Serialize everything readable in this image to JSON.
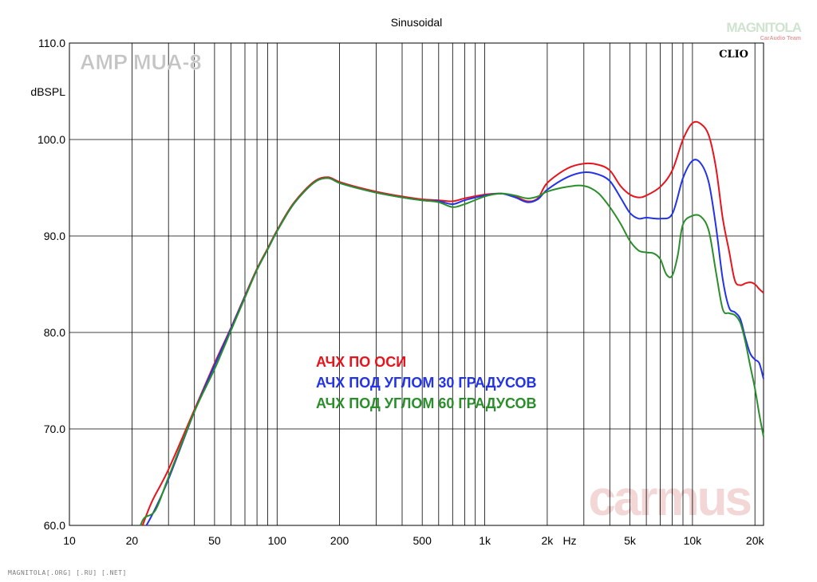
{
  "chart_data": {
    "type": "line",
    "title": "Sinusoidal",
    "ylabel": "dBSPL",
    "xlabel": "Hz",
    "x_scale": "log",
    "xlim": [
      10,
      22000
    ],
    "ylim": [
      60,
      110
    ],
    "x_ticks": [
      {
        "value": 10,
        "label": "10"
      },
      {
        "value": 20,
        "label": "20"
      },
      {
        "value": 50,
        "label": "50"
      },
      {
        "value": 100,
        "label": "100"
      },
      {
        "value": 200,
        "label": "200"
      },
      {
        "value": 500,
        "label": "500"
      },
      {
        "value": 1000,
        "label": "1k"
      },
      {
        "value": 2000,
        "label": "2k"
      },
      {
        "value": 5000,
        "label": "5k"
      },
      {
        "value": 10000,
        "label": "10k"
      },
      {
        "value": 20000,
        "label": "20k"
      }
    ],
    "y_ticks": [
      {
        "value": 60,
        "label": "60.0"
      },
      {
        "value": 70,
        "label": "70.0"
      },
      {
        "value": 80,
        "label": "80.0"
      },
      {
        "value": 90,
        "label": "90.0"
      },
      {
        "value": 100,
        "label": "100.0"
      },
      {
        "value": 110,
        "label": "110.0"
      }
    ],
    "grid": true,
    "annotations": {
      "amp": "AMP MUA-8",
      "clio": "CLIO",
      "brand_top": "MAGNITOLA",
      "brand_sub": "CarAudio Team",
      "watermark": "carmus"
    },
    "legend_placement": "center-left",
    "series": [
      {
        "name": "АЧХ ПО ОСИ",
        "color": "#e8141c",
        "points": [
          [
            22.5,
            60.0
          ],
          [
            25,
            62.5
          ],
          [
            30,
            65.8
          ],
          [
            40,
            72.0
          ],
          [
            50,
            76.8
          ],
          [
            60,
            80.5
          ],
          [
            70,
            83.8
          ],
          [
            80,
            86.6
          ],
          [
            90,
            88.7
          ],
          [
            100,
            90.6
          ],
          [
            120,
            93.4
          ],
          [
            150,
            95.6
          ],
          [
            175,
            96.1
          ],
          [
            200,
            95.6
          ],
          [
            250,
            95.0
          ],
          [
            300,
            94.6
          ],
          [
            400,
            94.1
          ],
          [
            500,
            93.8
          ],
          [
            600,
            93.7
          ],
          [
            700,
            93.6
          ],
          [
            800,
            93.9
          ],
          [
            1000,
            94.3
          ],
          [
            1200,
            94.4
          ],
          [
            1400,
            94.1
          ],
          [
            1600,
            93.6
          ],
          [
            1800,
            93.9
          ],
          [
            2000,
            95.5
          ],
          [
            2500,
            97.0
          ],
          [
            3000,
            97.5
          ],
          [
            3500,
            97.4
          ],
          [
            4000,
            96.8
          ],
          [
            4500,
            95.2
          ],
          [
            5000,
            94.3
          ],
          [
            5500,
            94.0
          ],
          [
            6000,
            94.2
          ],
          [
            7000,
            95.1
          ],
          [
            8000,
            96.8
          ],
          [
            9000,
            100.0
          ],
          [
            10000,
            101.7
          ],
          [
            11000,
            101.6
          ],
          [
            12000,
            100.4
          ],
          [
            13000,
            97.0
          ],
          [
            14000,
            91.8
          ],
          [
            15000,
            88.5
          ],
          [
            16000,
            85.4
          ],
          [
            17000,
            84.9
          ],
          [
            18000,
            85.1
          ],
          [
            19000,
            85.2
          ],
          [
            20000,
            85.0
          ],
          [
            21000,
            84.5
          ],
          [
            22000,
            84.1
          ]
        ]
      },
      {
        "name": "АЧХ ПОД УГЛОМ 30 ГРАДУСОВ",
        "color": "#2233e8",
        "points": [
          [
            23.5,
            60.0
          ],
          [
            26,
            61.8
          ],
          [
            30,
            64.8
          ],
          [
            40,
            71.8
          ],
          [
            50,
            76.6
          ],
          [
            60,
            80.4
          ],
          [
            70,
            83.7
          ],
          [
            80,
            86.5
          ],
          [
            90,
            88.6
          ],
          [
            100,
            90.5
          ],
          [
            120,
            93.3
          ],
          [
            150,
            95.5
          ],
          [
            175,
            96.0
          ],
          [
            200,
            95.5
          ],
          [
            250,
            94.9
          ],
          [
            300,
            94.5
          ],
          [
            400,
            94.0
          ],
          [
            500,
            93.7
          ],
          [
            600,
            93.6
          ],
          [
            700,
            93.3
          ],
          [
            800,
            93.7
          ],
          [
            1000,
            94.2
          ],
          [
            1200,
            94.4
          ],
          [
            1400,
            94.0
          ],
          [
            1600,
            93.5
          ],
          [
            1800,
            93.8
          ],
          [
            2000,
            94.8
          ],
          [
            2500,
            96.1
          ],
          [
            3000,
            96.6
          ],
          [
            3500,
            96.4
          ],
          [
            4000,
            95.7
          ],
          [
            4500,
            94.0
          ],
          [
            5000,
            92.4
          ],
          [
            5500,
            91.8
          ],
          [
            6000,
            91.9
          ],
          [
            7000,
            91.8
          ],
          [
            8000,
            92.3
          ],
          [
            9000,
            96.0
          ],
          [
            10000,
            97.8
          ],
          [
            11000,
            97.5
          ],
          [
            12000,
            95.5
          ],
          [
            13000,
            90.9
          ],
          [
            14000,
            85.5
          ],
          [
            15000,
            82.6
          ],
          [
            16000,
            82.1
          ],
          [
            17000,
            81.4
          ],
          [
            18000,
            79.4
          ],
          [
            19000,
            77.8
          ],
          [
            20000,
            77.2
          ],
          [
            21000,
            76.8
          ],
          [
            22000,
            75.2
          ]
        ]
      },
      {
        "name": "АЧХ ПОД УГЛОМ 60 ГРАДУСОВ",
        "color": "#2a8f2a",
        "points": [
          [
            22.0,
            60.0
          ],
          [
            23,
            60.8
          ],
          [
            26,
            61.6
          ],
          [
            30,
            65.0
          ],
          [
            40,
            71.8
          ],
          [
            50,
            76.2
          ],
          [
            60,
            80.2
          ],
          [
            70,
            83.6
          ],
          [
            80,
            86.5
          ],
          [
            90,
            88.6
          ],
          [
            100,
            90.5
          ],
          [
            120,
            93.3
          ],
          [
            150,
            95.5
          ],
          [
            175,
            96.0
          ],
          [
            200,
            95.5
          ],
          [
            250,
            94.9
          ],
          [
            300,
            94.5
          ],
          [
            400,
            94.0
          ],
          [
            500,
            93.7
          ],
          [
            600,
            93.5
          ],
          [
            700,
            93.0
          ],
          [
            800,
            93.3
          ],
          [
            1000,
            94.1
          ],
          [
            1200,
            94.4
          ],
          [
            1400,
            94.2
          ],
          [
            1600,
            93.9
          ],
          [
            1800,
            94.1
          ],
          [
            2000,
            94.6
          ],
          [
            2500,
            95.1
          ],
          [
            3000,
            95.2
          ],
          [
            3500,
            94.5
          ],
          [
            4000,
            93.0
          ],
          [
            4500,
            91.3
          ],
          [
            5000,
            89.5
          ],
          [
            5500,
            88.5
          ],
          [
            6000,
            88.3
          ],
          [
            6500,
            88.2
          ],
          [
            7000,
            87.6
          ],
          [
            7500,
            86.0
          ],
          [
            8000,
            85.9
          ],
          [
            8500,
            88.0
          ],
          [
            9000,
            91.2
          ],
          [
            10000,
            92.1
          ],
          [
            11000,
            92.0
          ],
          [
            12000,
            90.5
          ],
          [
            13000,
            86.2
          ],
          [
            14000,
            82.4
          ],
          [
            15000,
            82.0
          ],
          [
            16000,
            81.8
          ],
          [
            17000,
            81.0
          ],
          [
            18000,
            79.0
          ],
          [
            19000,
            76.5
          ],
          [
            20000,
            74.2
          ],
          [
            21000,
            71.5
          ],
          [
            22000,
            69.2
          ]
        ]
      }
    ]
  },
  "footer": "MAGNITOLA[.ORG] [.RU] [.NET]"
}
